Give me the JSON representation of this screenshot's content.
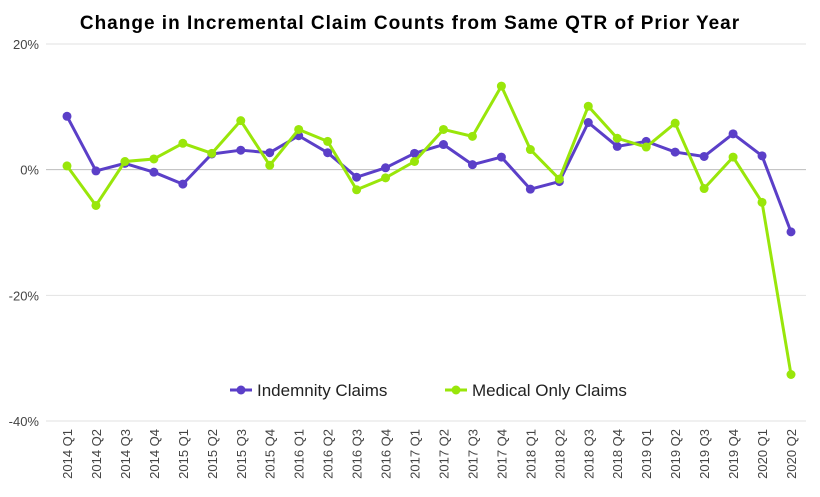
{
  "chart_data": {
    "type": "line",
    "title": "Change in Incremental Claim Counts from Same QTR of Prior Year",
    "xlabel": "",
    "ylabel": "",
    "ylim": [
      -40,
      20
    ],
    "yticks": [
      20,
      0,
      -20,
      -40
    ],
    "ytick_labels": [
      "20%",
      "0%",
      "-20%",
      "-40%"
    ],
    "grid": true,
    "legend_position": "bottom-center-inside",
    "categories": [
      "2014 Q1",
      "2014 Q2",
      "2014 Q3",
      "2014 Q4",
      "2015 Q1",
      "2015 Q2",
      "2015 Q3",
      "2015 Q4",
      "2016 Q1",
      "2016 Q2",
      "2016 Q3",
      "2016 Q4",
      "2017 Q1",
      "2017 Q2",
      "2017 Q3",
      "2017 Q4",
      "2018 Q1",
      "2018 Q2",
      "2018 Q3",
      "2018 Q4",
      "2019 Q1",
      "2019 Q2",
      "2019 Q3",
      "2019 Q4",
      "2020 Q1",
      "2020 Q2"
    ],
    "series": [
      {
        "name": "Indemnity Claims",
        "color": "#5b3fc8",
        "values": [
          8.5,
          -0.2,
          1.0,
          -0.4,
          -2.3,
          2.5,
          3.1,
          2.7,
          5.4,
          2.7,
          -1.2,
          0.3,
          2.6,
          4.0,
          0.8,
          2.0,
          -3.1,
          -1.9,
          7.5,
          3.7,
          4.5,
          2.8,
          2.1,
          5.7,
          2.2,
          -9.9
        ]
      },
      {
        "name": "Medical Only Claims",
        "color": "#99e60a",
        "values": [
          0.6,
          -5.7,
          1.3,
          1.7,
          4.2,
          2.6,
          7.8,
          0.7,
          6.4,
          4.5,
          -3.2,
          -1.3,
          1.3,
          6.4,
          5.3,
          13.3,
          3.2,
          -1.5,
          10.1,
          5.0,
          3.6,
          7.4,
          -3.0,
          2.0,
          -5.2,
          -32.6
        ]
      }
    ]
  }
}
